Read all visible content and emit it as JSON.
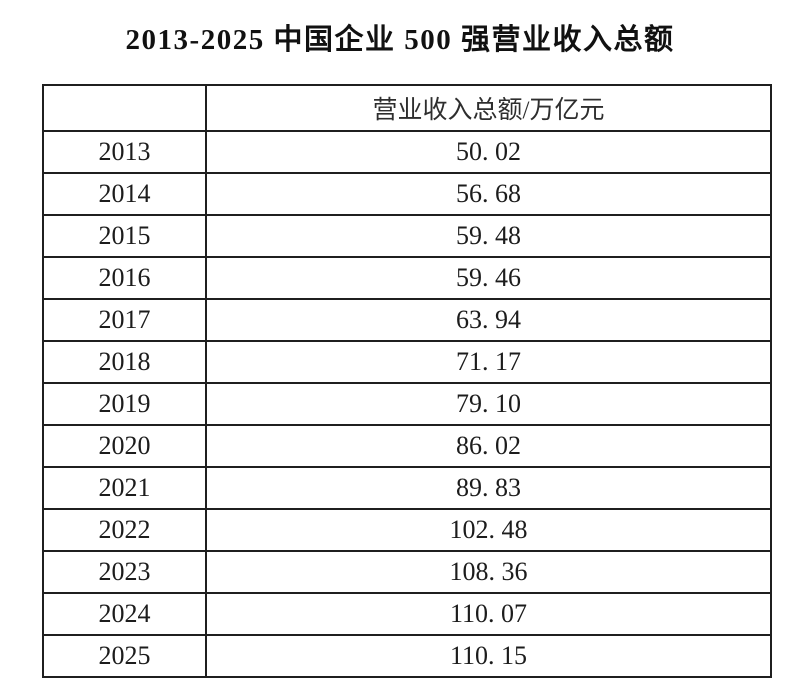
{
  "title": "2013-2025 中国企业 500 强营业收入总额",
  "table": {
    "header": {
      "year_col": "",
      "value_col": "营业收入总额/万亿元"
    },
    "rows": [
      {
        "year": "2013",
        "value": "50. 02"
      },
      {
        "year": "2014",
        "value": "56. 68"
      },
      {
        "year": "2015",
        "value": "59. 48"
      },
      {
        "year": "2016",
        "value": "59. 46"
      },
      {
        "year": "2017",
        "value": "63. 94"
      },
      {
        "year": "2018",
        "value": "71. 17"
      },
      {
        "year": "2019",
        "value": "79. 10"
      },
      {
        "year": "2020",
        "value": "86. 02"
      },
      {
        "year": "2021",
        "value": "89. 83"
      },
      {
        "year": "2022",
        "value": "102. 48"
      },
      {
        "year": "2023",
        "value": "108. 36"
      },
      {
        "year": "2024",
        "value": "110. 07"
      },
      {
        "year": "2025",
        "value": "110. 15"
      }
    ]
  },
  "chart_data": {
    "type": "table",
    "title": "2013-2025 中国企业 500 强营业收入总额",
    "categories": [
      "2013",
      "2014",
      "2015",
      "2016",
      "2017",
      "2018",
      "2019",
      "2020",
      "2021",
      "2022",
      "2023",
      "2024",
      "2025"
    ],
    "series": [
      {
        "name": "营业收入总额/万亿元",
        "values": [
          50.02,
          56.68,
          59.48,
          59.46,
          63.94,
          71.17,
          79.1,
          86.02,
          89.83,
          102.48,
          108.36,
          110.07,
          110.15
        ]
      }
    ],
    "layout_hints": {
      "grid": "full table borders",
      "value_alignment": "center",
      "header_row": [
        "",
        "营业收入总额/万亿元"
      ]
    }
  }
}
